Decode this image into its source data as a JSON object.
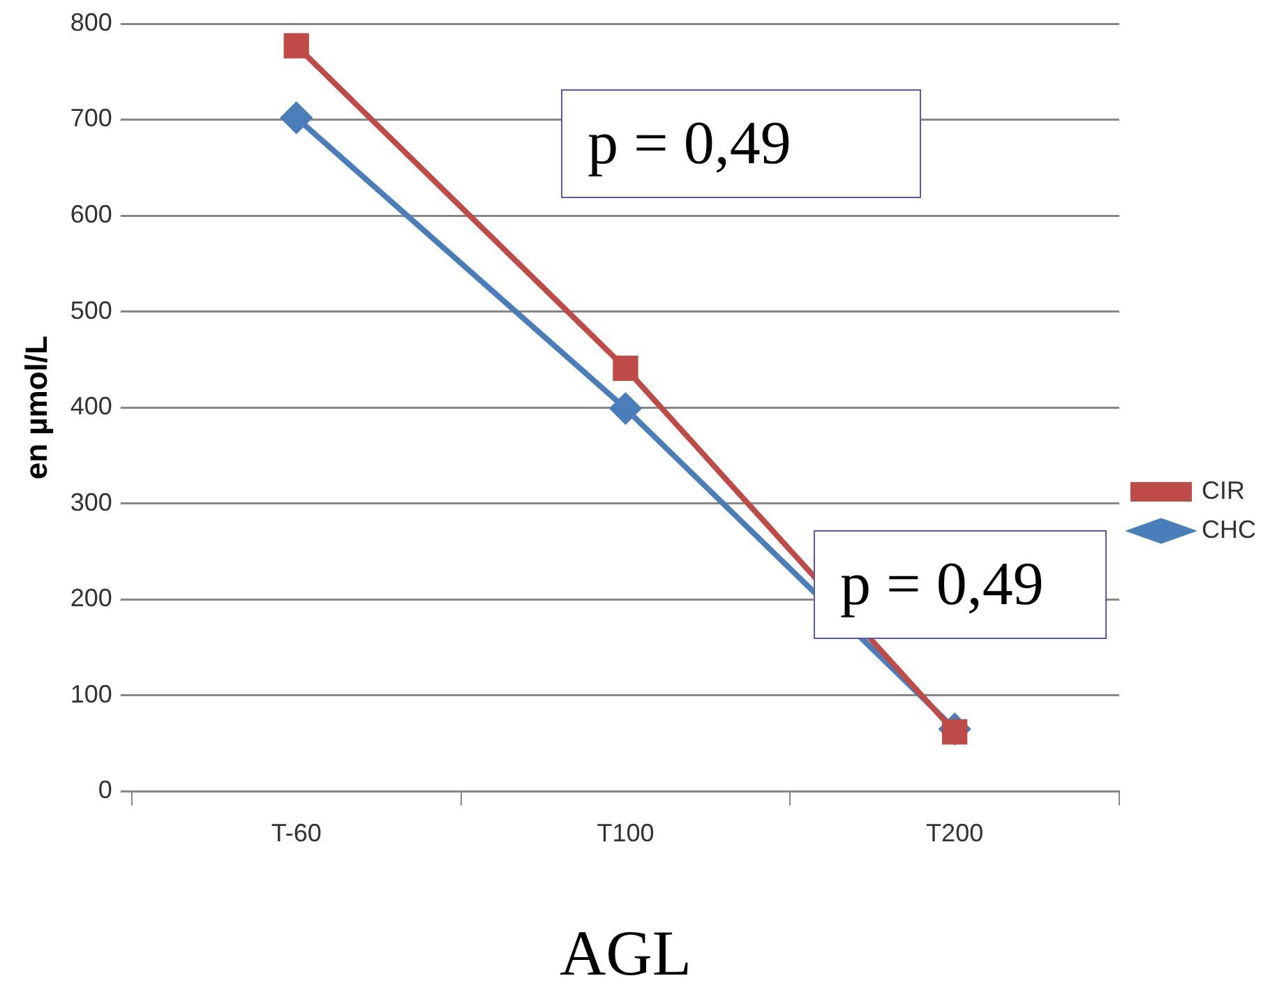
{
  "chart_data": {
    "type": "line",
    "xlabel": "AGL",
    "ylabel": "en µmol/L",
    "categories": [
      "T-60",
      "T100",
      "T200"
    ],
    "series": [
      {
        "name": "CHC",
        "color": "#4a7ebb",
        "values": [
          702,
          399,
          65
        ],
        "marker": "diamond"
      },
      {
        "name": "CIR",
        "color": "#be4b48",
        "values": [
          777,
          441,
          62
        ],
        "marker": "square"
      }
    ],
    "ylim": [
      0,
      800
    ],
    "yticks": [
      0,
      100,
      200,
      300,
      400,
      500,
      600,
      700,
      800
    ],
    "grid": "y",
    "legend": "right",
    "line_style": "solid",
    "annotations": [
      "p = 0,49",
      "p = 0,49"
    ]
  }
}
